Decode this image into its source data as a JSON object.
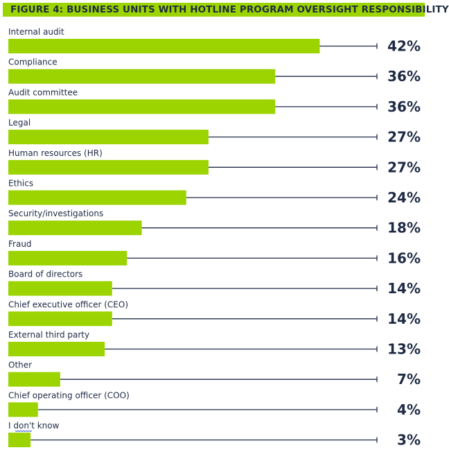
{
  "chart_data": {
    "type": "bar",
    "orientation": "horizontal",
    "title": "FIGURE 4: BUSINESS UNITS WITH HOTLINE PROGRAM OVERSIGHT RESPONSIBILITY",
    "categories": [
      "Internal audit",
      "Compliance",
      "Audit committee",
      "Legal",
      "Human resources (HR)",
      "Ethics",
      "Security/investigations",
      "Fraud",
      "Board of directors",
      "Chief executive officer (CEO)",
      "External third party",
      "Other",
      "Chief operating officer (COO)",
      "I don't know"
    ],
    "values": [
      42,
      36,
      36,
      27,
      27,
      24,
      18,
      16,
      14,
      14,
      13,
      7,
      4,
      3
    ],
    "value_labels": [
      "42%",
      "36%",
      "36%",
      "27%",
      "27%",
      "24%",
      "18%",
      "16%",
      "14%",
      "14%",
      "13%",
      "7%",
      "4%",
      "3%"
    ],
    "unit": "%",
    "xlim": [
      0,
      50
    ],
    "bar_color": "#9bd400",
    "title_bg_color": "#9bd400",
    "text_color": "#1e2a44",
    "grid": false,
    "legend": "none"
  }
}
